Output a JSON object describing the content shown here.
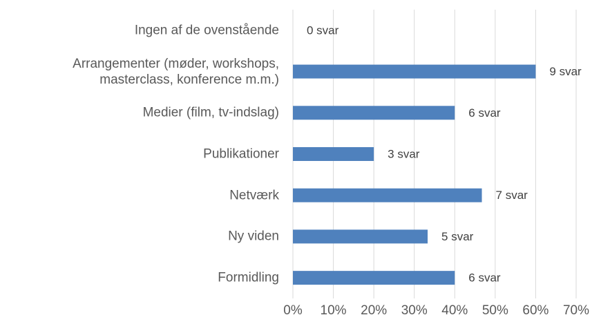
{
  "chart_data": {
    "type": "bar",
    "orientation": "horizontal",
    "categories": [
      "Ingen af de ovenstående",
      "Arrangementer (møder, workshops,\nmasterclass, konference m.m.)",
      "Medier (film, tv-indslag)",
      "Publikationer",
      "Netværk",
      "Ny viden",
      "Formidling"
    ],
    "values": [
      0,
      60,
      40,
      20,
      46.7,
      33.3,
      40
    ],
    "value_labels": [
      "0 svar",
      "9 svar",
      "6 svar",
      "3 svar",
      "7 svar",
      "5 svar",
      "6 svar"
    ],
    "color": "#4f81bd",
    "xlim": [
      0,
      70
    ],
    "xticks": [
      {
        "value": 0,
        "label": "0%"
      },
      {
        "value": 10,
        "label": "10%"
      },
      {
        "value": 20,
        "label": "20%"
      },
      {
        "value": 30,
        "label": "30%"
      },
      {
        "value": 40,
        "label": "40%"
      },
      {
        "value": 50,
        "label": "50%"
      },
      {
        "value": 60,
        "label": "60%"
      },
      {
        "value": 70,
        "label": "70%"
      }
    ],
    "grid": true
  }
}
